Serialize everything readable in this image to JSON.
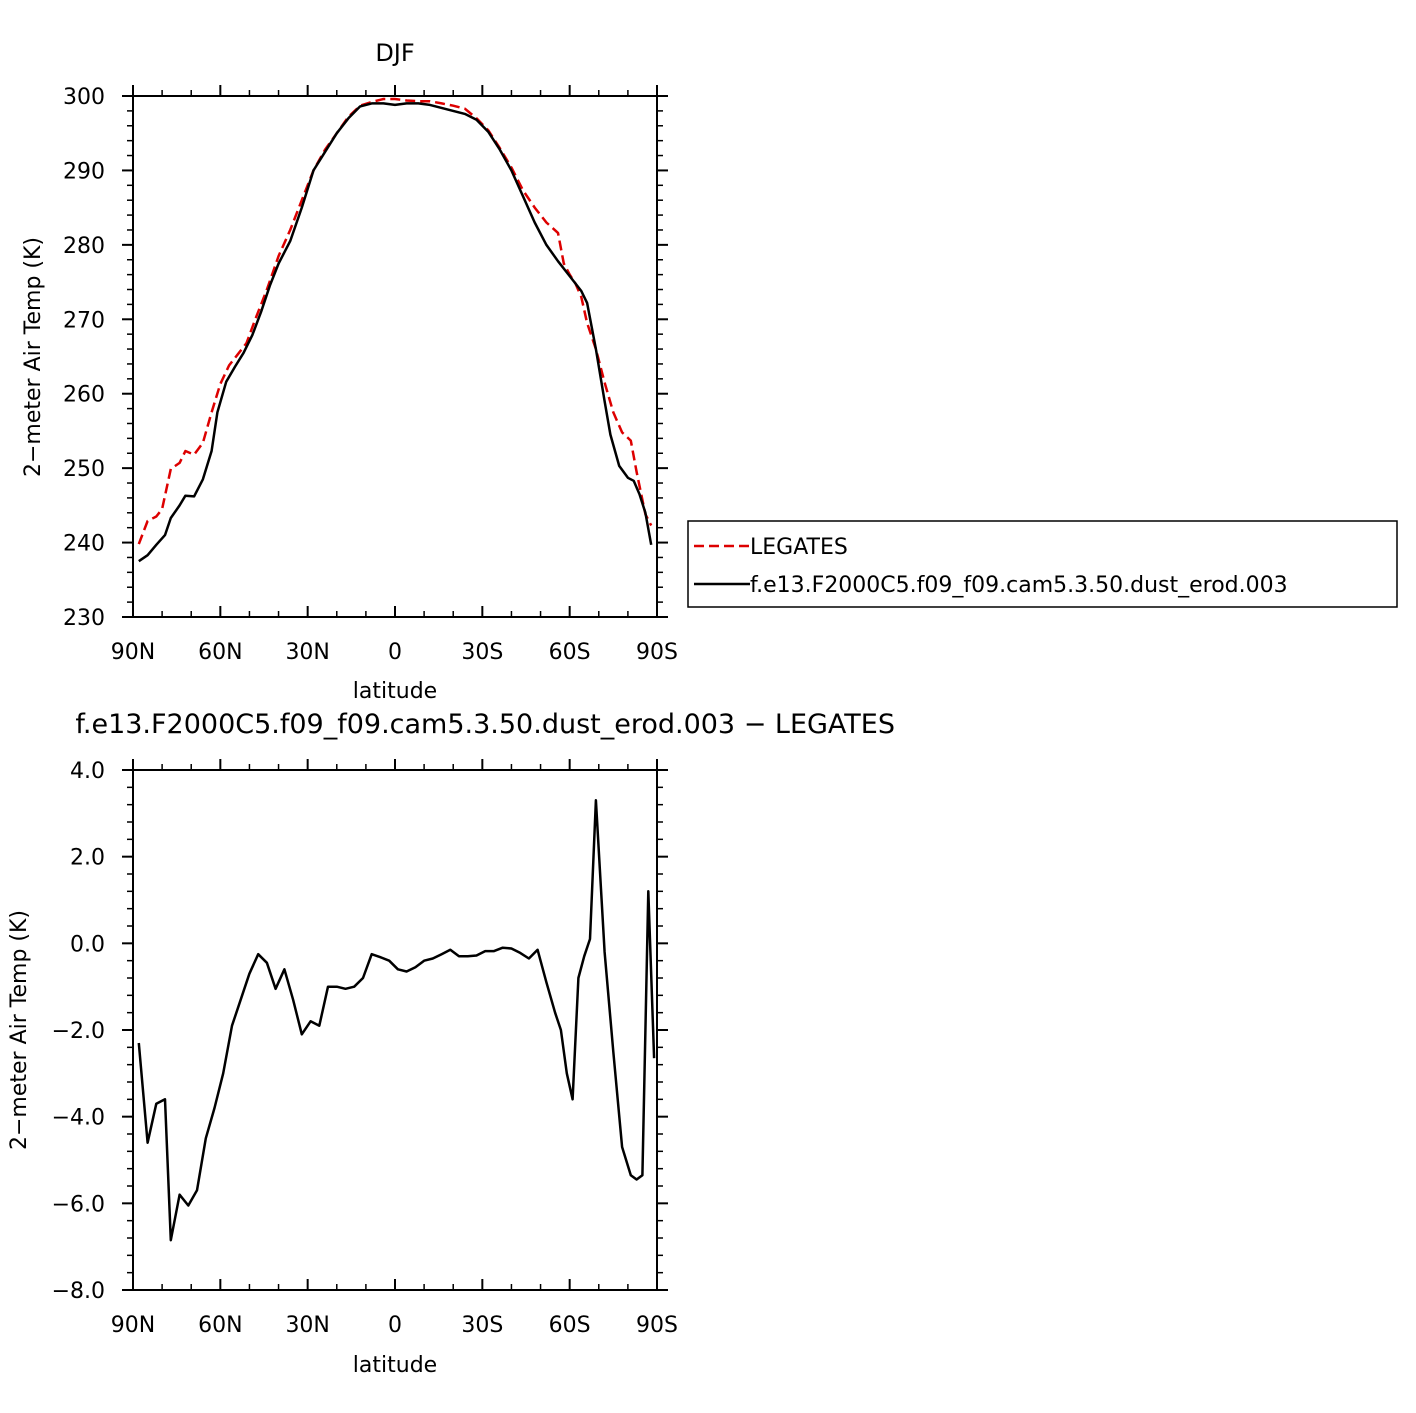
{
  "chart_data": [
    {
      "type": "line",
      "title": "DJF",
      "xlabel": "latitude",
      "ylabel": "2−meter Air Temp (K)",
      "xlim": [
        -90,
        90
      ],
      "ylim": [
        230,
        300
      ],
      "x_ticks": [
        -90,
        -60,
        -30,
        0,
        30,
        60,
        90
      ],
      "x_tick_labels": [
        "90N",
        "60N",
        "30N",
        "0",
        "30S",
        "60S",
        "90S"
      ],
      "y_ticks": [
        230,
        240,
        250,
        260,
        270,
        280,
        290,
        300
      ],
      "y_tick_labels": [
        "230",
        "240",
        "250",
        "260",
        "270",
        "280",
        "290",
        "300"
      ],
      "legend_position": "right",
      "series": [
        {
          "name": "LEGATES",
          "color": "#dd0000",
          "style": "dashed",
          "points": [
            [
              -88,
              239.8
            ],
            [
              -85,
              242.9
            ],
            [
              -82,
              243.5
            ],
            [
              -80,
              244.5
            ],
            [
              -77,
              249.9
            ],
            [
              -74,
              250.7
            ],
            [
              -72,
              252.3
            ],
            [
              -69,
              251.8
            ],
            [
              -66,
              253.4
            ],
            [
              -63,
              257.5
            ],
            [
              -60,
              261.3
            ],
            [
              -57,
              263.8
            ],
            [
              -54,
              265.3
            ],
            [
              -51,
              266.8
            ],
            [
              -48,
              270.0
            ],
            [
              -44,
              274.0
            ],
            [
              -40,
              278.5
            ],
            [
              -36,
              282.0
            ],
            [
              -32,
              286.0
            ],
            [
              -28,
              290.0
            ],
            [
              -24,
              292.8
            ],
            [
              -20,
              295.0
            ],
            [
              -16,
              297.2
            ],
            [
              -12,
              298.7
            ],
            [
              -8,
              299.2
            ],
            [
              -4,
              299.6
            ],
            [
              0,
              299.6
            ],
            [
              4,
              299.4
            ],
            [
              8,
              299.3
            ],
            [
              12,
              299.3
            ],
            [
              16,
              299.0
            ],
            [
              20,
              298.7
            ],
            [
              24,
              298.3
            ],
            [
              28,
              297.0
            ],
            [
              32,
              295.4
            ],
            [
              36,
              293.0
            ],
            [
              40,
              290.4
            ],
            [
              44,
              287.3
            ],
            [
              48,
              285.0
            ],
            [
              52,
              283.0
            ],
            [
              56,
              281.6
            ],
            [
              58,
              277.5
            ],
            [
              60,
              276.0
            ],
            [
              62,
              274.8
            ],
            [
              64,
              273.0
            ],
            [
              66,
              269.5
            ],
            [
              69,
              266.0
            ],
            [
              72,
              261.5
            ],
            [
              75,
              257.5
            ],
            [
              78,
              254.8
            ],
            [
              81,
              253.7
            ],
            [
              83,
              249.5
            ],
            [
              86,
              243.8
            ],
            [
              88,
              242.3
            ]
          ]
        },
        {
          "name": "f.e13.F2000C5.f09_f09.cam5.3.50.dust_erod.003",
          "color": "#000000",
          "style": "solid",
          "points": [
            [
              -88,
              237.5
            ],
            [
              -85,
              238.3
            ],
            [
              -82,
              239.7
            ],
            [
              -79,
              241.0
            ],
            [
              -77,
              243.3
            ],
            [
              -74,
              245.0
            ],
            [
              -72,
              246.3
            ],
            [
              -69,
              246.2
            ],
            [
              -66,
              248.5
            ],
            [
              -63,
              252.3
            ],
            [
              -61,
              257.5
            ],
            [
              -58,
              261.6
            ],
            [
              -55,
              263.6
            ],
            [
              -52,
              265.5
            ],
            [
              -49,
              267.9
            ],
            [
              -46,
              271.0
            ],
            [
              -43,
              274.5
            ],
            [
              -40,
              277.5
            ],
            [
              -36,
              280.5
            ],
            [
              -32,
              285.0
            ],
            [
              -28,
              290.0
            ],
            [
              -24,
              292.5
            ],
            [
              -20,
              295.0
            ],
            [
              -16,
              297.0
            ],
            [
              -12,
              298.6
            ],
            [
              -8,
              299.0
            ],
            [
              -4,
              299.0
            ],
            [
              0,
              298.8
            ],
            [
              4,
              299.0
            ],
            [
              8,
              299.0
            ],
            [
              12,
              298.8
            ],
            [
              16,
              298.4
            ],
            [
              20,
              298.0
            ],
            [
              24,
              297.6
            ],
            [
              28,
              296.8
            ],
            [
              32,
              295.2
            ],
            [
              36,
              292.8
            ],
            [
              40,
              290.0
            ],
            [
              44,
              286.5
            ],
            [
              48,
              283.0
            ],
            [
              52,
              280.0
            ],
            [
              56,
              277.8
            ],
            [
              60,
              275.8
            ],
            [
              64,
              273.8
            ],
            [
              66,
              272.2
            ],
            [
              69,
              266.0
            ],
            [
              72,
              259.0
            ],
            [
              74,
              254.5
            ],
            [
              77,
              250.3
            ],
            [
              80,
              248.7
            ],
            [
              82,
              248.3
            ],
            [
              84,
              246.5
            ],
            [
              86,
              244.0
            ],
            [
              88,
              239.7
            ]
          ]
        }
      ]
    },
    {
      "type": "line",
      "title": "f.e13.F2000C5.f09_f09.cam5.3.50.dust_erod.003 − LEGATES",
      "xlabel": "latitude",
      "ylabel": "2−meter Air Temp (K)",
      "xlim": [
        -90,
        90
      ],
      "ylim": [
        -8,
        4
      ],
      "x_ticks": [
        -90,
        -60,
        -30,
        0,
        30,
        60,
        90
      ],
      "x_tick_labels": [
        "90N",
        "60N",
        "30N",
        "0",
        "30S",
        "60S",
        "90S"
      ],
      "y_ticks": [
        -8,
        -6,
        -4,
        -2,
        0,
        2,
        4
      ],
      "y_tick_labels": [
        "−8.0",
        "−6.0",
        "−4.0",
        "−2.0",
        "0.0",
        "2.0",
        "4.0"
      ],
      "series": [
        {
          "color": "#000000",
          "style": "solid",
          "points": [
            [
              -88,
              -2.3
            ],
            [
              -85,
              -4.6
            ],
            [
              -82,
              -3.7
            ],
            [
              -79,
              -3.6
            ],
            [
              -77,
              -6.85
            ],
            [
              -74,
              -5.8
            ],
            [
              -71,
              -6.05
            ],
            [
              -68,
              -5.7
            ],
            [
              -65,
              -4.5
            ],
            [
              -62,
              -3.8
            ],
            [
              -59,
              -3.0
            ],
            [
              -56,
              -1.9
            ],
            [
              -53,
              -1.3
            ],
            [
              -50,
              -0.7
            ],
            [
              -47,
              -0.25
            ],
            [
              -44,
              -0.45
            ],
            [
              -41,
              -1.05
            ],
            [
              -38,
              -0.6
            ],
            [
              -35,
              -1.3
            ],
            [
              -32,
              -2.1
            ],
            [
              -29,
              -1.8
            ],
            [
              -26,
              -1.9
            ],
            [
              -23,
              -1.0
            ],
            [
              -20,
              -1.0
            ],
            [
              -17,
              -1.05
            ],
            [
              -14,
              -1.0
            ],
            [
              -11,
              -0.8
            ],
            [
              -8,
              -0.25
            ],
            [
              -5,
              -0.32
            ],
            [
              -2,
              -0.4
            ],
            [
              1,
              -0.6
            ],
            [
              4,
              -0.65
            ],
            [
              7,
              -0.55
            ],
            [
              10,
              -0.4
            ],
            [
              13,
              -0.35
            ],
            [
              16,
              -0.25
            ],
            [
              19,
              -0.15
            ],
            [
              22,
              -0.3
            ],
            [
              25,
              -0.3
            ],
            [
              28,
              -0.28
            ],
            [
              31,
              -0.18
            ],
            [
              34,
              -0.18
            ],
            [
              37,
              -0.1
            ],
            [
              40,
              -0.12
            ],
            [
              43,
              -0.22
            ],
            [
              46,
              -0.35
            ],
            [
              49,
              -0.15
            ],
            [
              52,
              -0.9
            ],
            [
              55,
              -1.6
            ],
            [
              57,
              -2.0
            ],
            [
              59,
              -3.0
            ],
            [
              61,
              -3.6
            ],
            [
              63,
              -0.8
            ],
            [
              65,
              -0.3
            ],
            [
              67,
              0.1
            ],
            [
              69,
              3.3
            ],
            [
              72,
              -0.2
            ],
            [
              75,
              -2.5
            ],
            [
              78,
              -4.7
            ],
            [
              81,
              -5.35
            ],
            [
              83,
              -5.45
            ],
            [
              85,
              -5.35
            ],
            [
              87,
              1.2
            ],
            [
              89,
              -2.65
            ]
          ]
        }
      ]
    }
  ]
}
